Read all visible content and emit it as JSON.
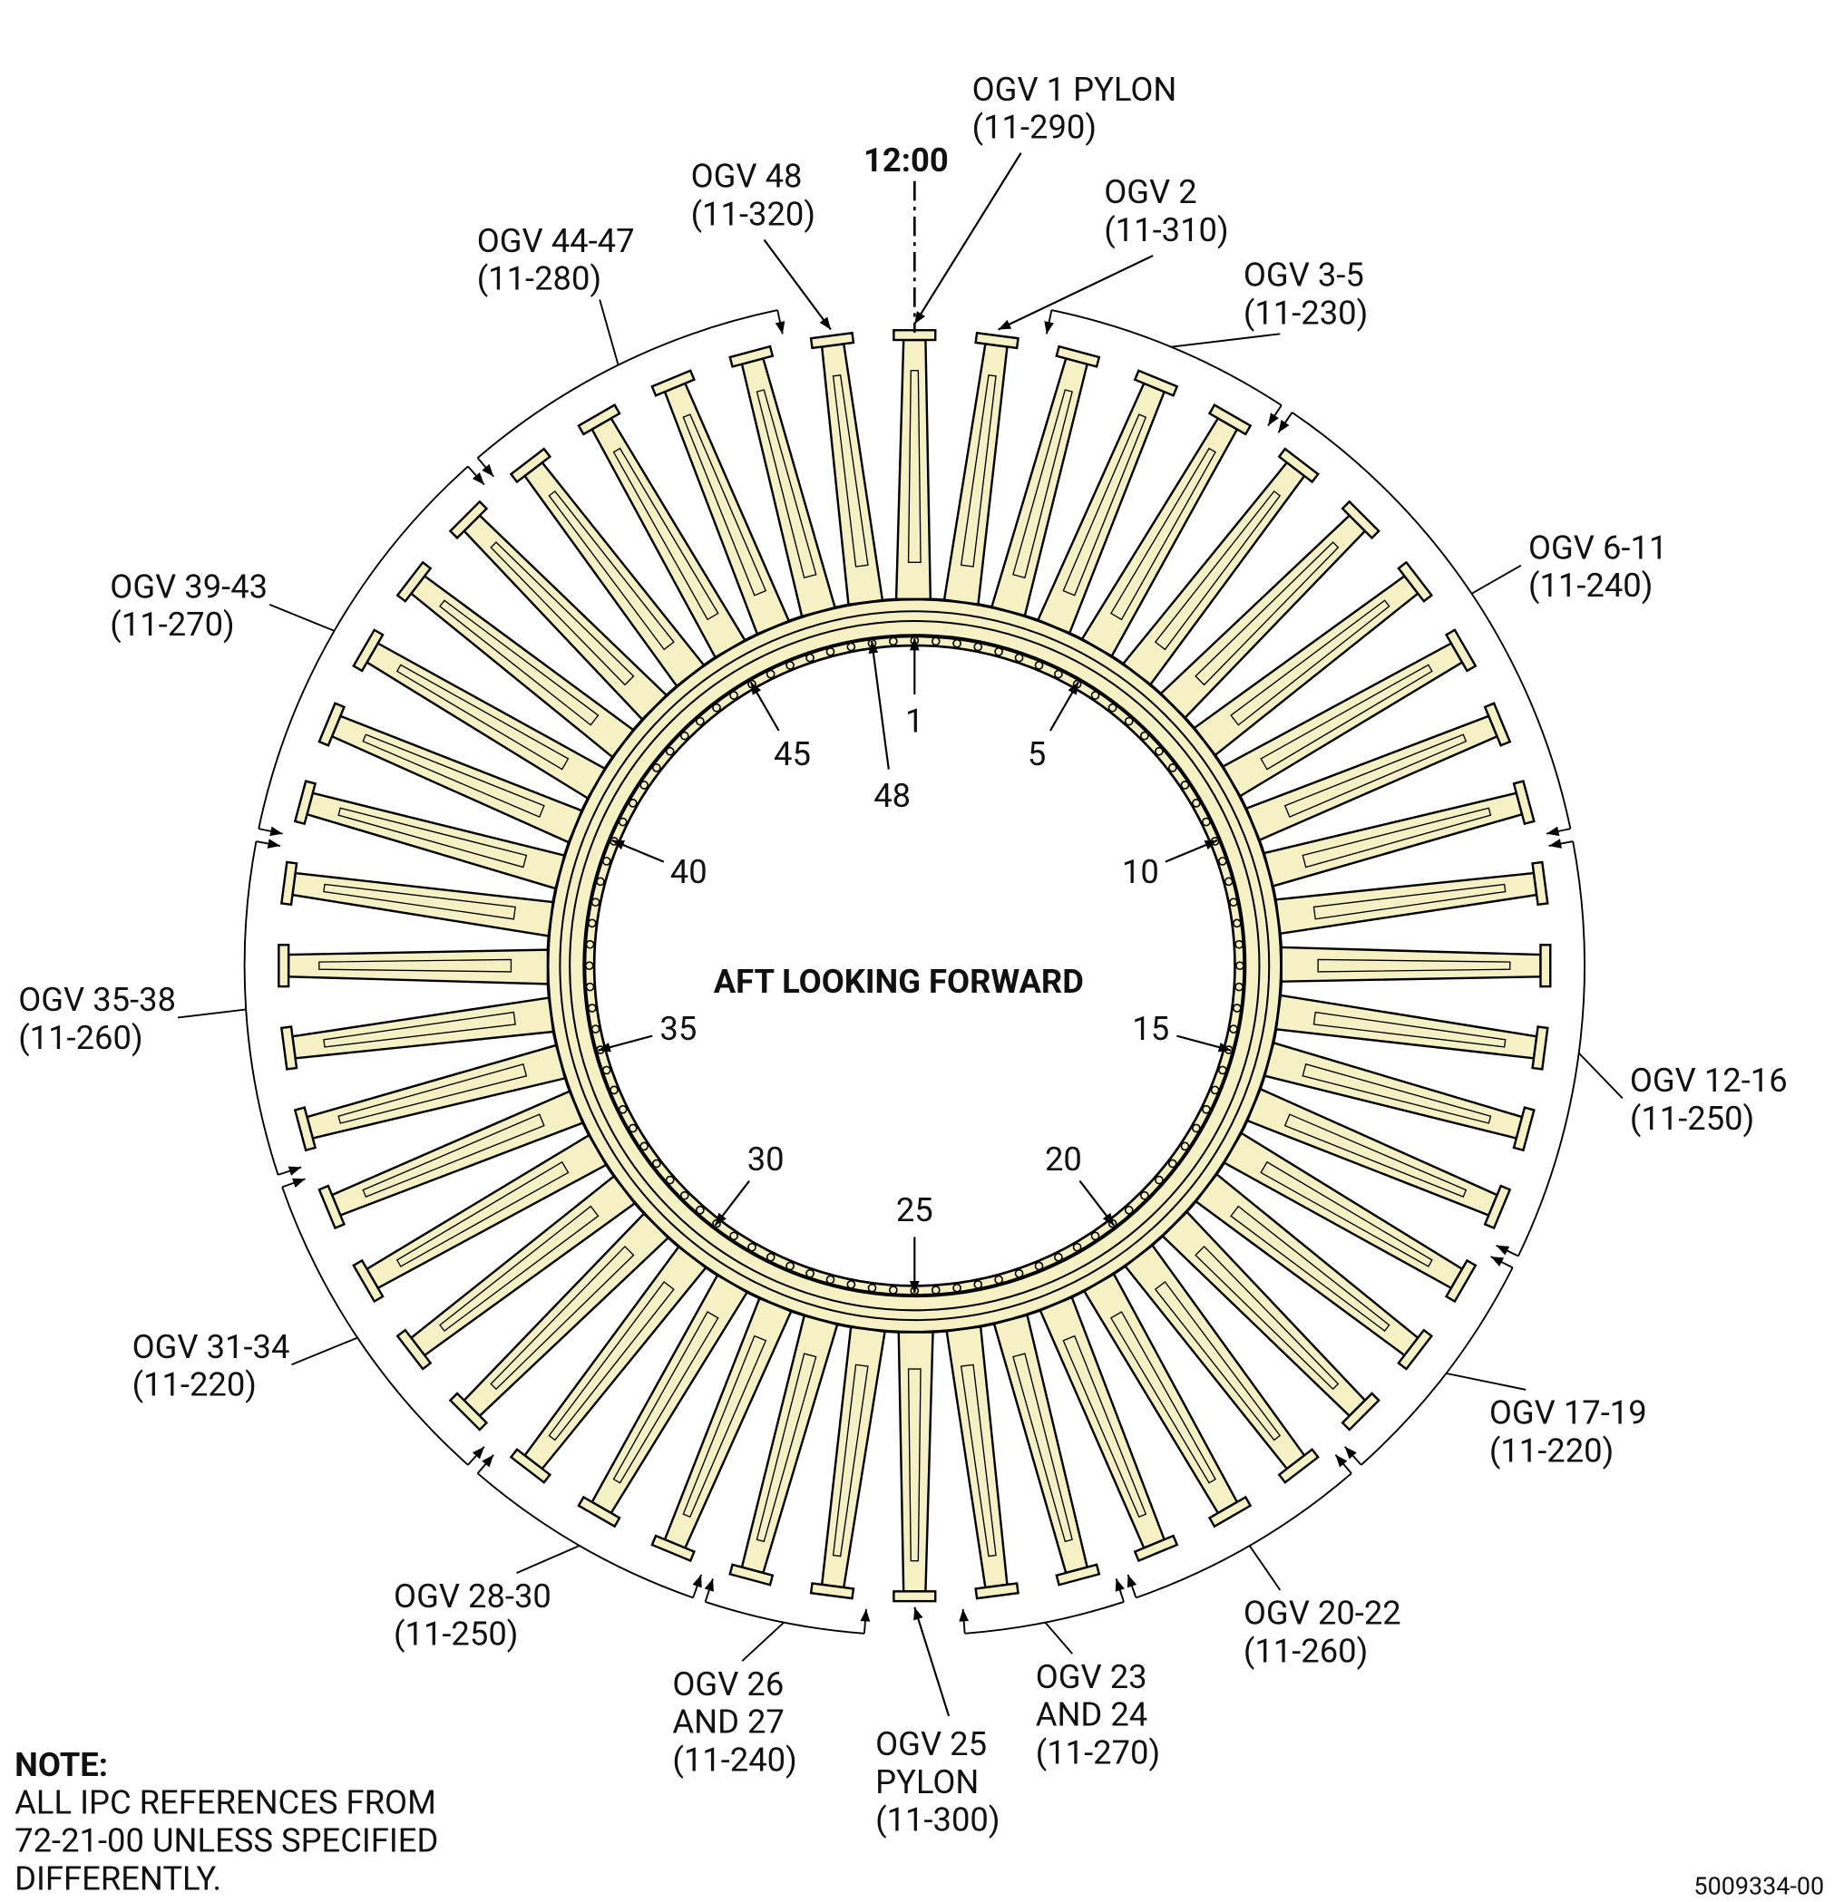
{
  "orientation_label": "12:00",
  "view_label": "AFT LOOKING FORWARD",
  "vane_groups": [
    {
      "lines": [
        "OGV 1 PYLON",
        "(11-290)"
      ]
    },
    {
      "lines": [
        "OGV 2",
        "(11-310)"
      ]
    },
    {
      "lines": [
        "OGV 3-5",
        "(11-230)"
      ]
    },
    {
      "lines": [
        "OGV 6-11",
        "(11-240)"
      ]
    },
    {
      "lines": [
        "OGV 12-16",
        "(11-250)"
      ]
    },
    {
      "lines": [
        "OGV 17-19",
        "(11-220)"
      ]
    },
    {
      "lines": [
        "OGV 20-22",
        "(11-260)"
      ]
    },
    {
      "lines": [
        "OGV 23",
        "AND 24",
        "(11-270)"
      ]
    },
    {
      "lines": [
        "OGV 25",
        "PYLON",
        "(11-300)"
      ]
    },
    {
      "lines": [
        "OGV 26",
        "AND 27",
        "(11-240)"
      ]
    },
    {
      "lines": [
        "OGV 28-30",
        "(11-250)"
      ]
    },
    {
      "lines": [
        "OGV 31-34",
        "(11-220)"
      ]
    },
    {
      "lines": [
        "OGV 35-38",
        "(11-260)"
      ]
    },
    {
      "lines": [
        "OGV 39-43",
        "(11-270)"
      ]
    },
    {
      "lines": [
        "OGV 44-47",
        "(11-280)"
      ]
    },
    {
      "lines": [
        "OGV 48",
        "(11-320)"
      ]
    }
  ],
  "position_numbers": [
    1,
    5,
    10,
    15,
    20,
    25,
    30,
    35,
    40,
    45,
    48
  ],
  "note": {
    "title": "NOTE:",
    "lines": [
      "ALL IPC REFERENCES FROM",
      "72-21-00 UNLESS SPECIFIED",
      "DIFFERENTLY."
    ]
  },
  "figure_id": "5009334-00"
}
